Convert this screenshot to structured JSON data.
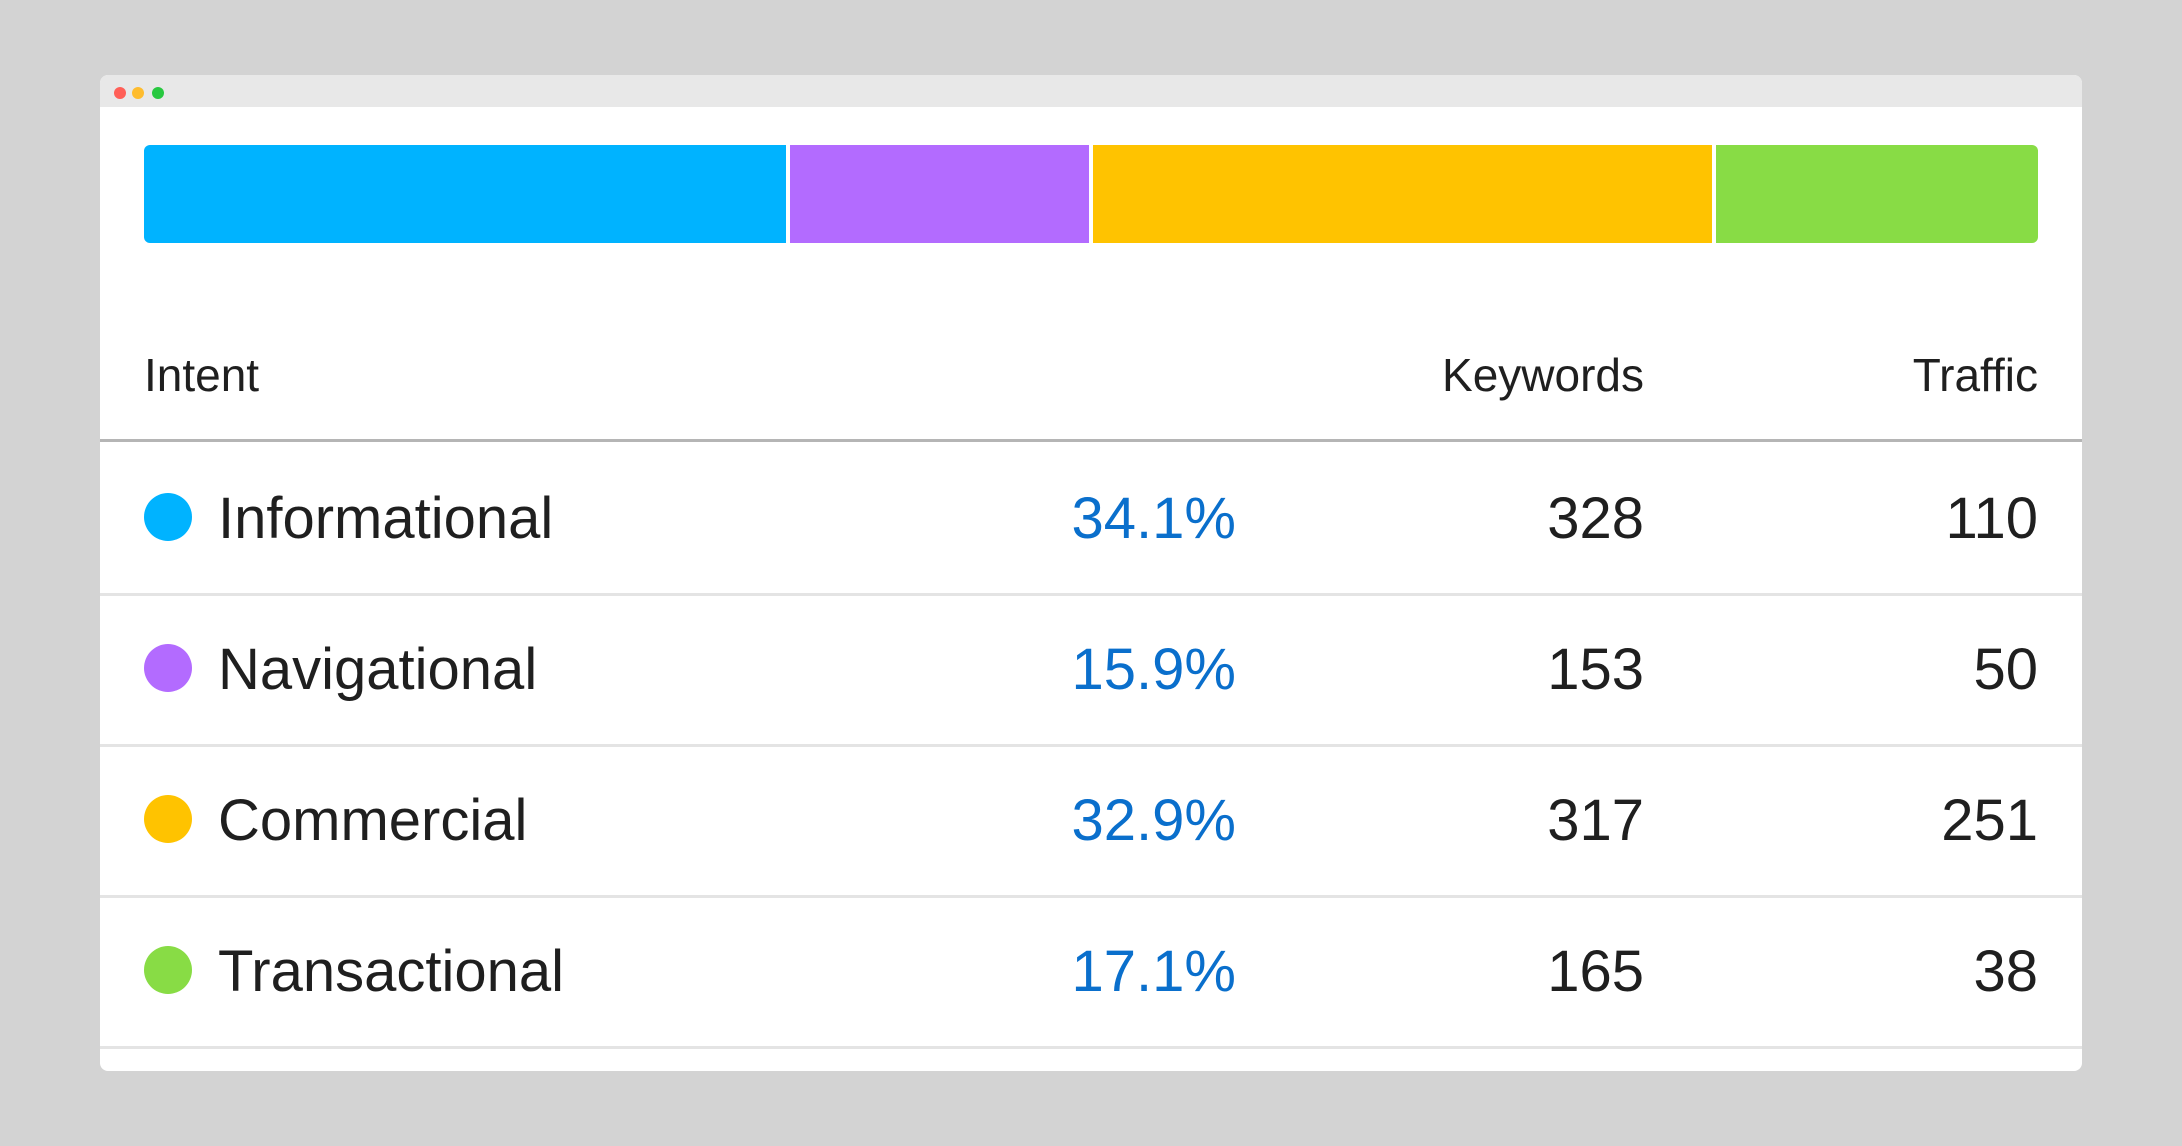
{
  "colors": {
    "informational": "#00b3ff",
    "navigational": "#b36bff",
    "commercial": "#ffc300",
    "transactional": "#88dc45"
  },
  "distribution": [
    {
      "key": "informational",
      "share": 34.1
    },
    {
      "key": "navigational",
      "share": 15.9
    },
    {
      "key": "commercial",
      "share": 32.9
    },
    {
      "key": "transactional",
      "share": 17.1
    }
  ],
  "table": {
    "headers": {
      "intent": "Intent",
      "keywords": "Keywords",
      "traffic": "Traffic"
    },
    "rows": [
      {
        "key": "informational",
        "label": "Informational",
        "percent": "34.1%",
        "keywords": "328",
        "traffic": "110"
      },
      {
        "key": "navigational",
        "label": "Navigational",
        "percent": "15.9%",
        "keywords": "153",
        "traffic": "50"
      },
      {
        "key": "commercial",
        "label": "Commercial",
        "percent": "32.9%",
        "keywords": "317",
        "traffic": "251"
      },
      {
        "key": "transactional",
        "label": "Transactional",
        "percent": "17.1%",
        "keywords": "165",
        "traffic": "38"
      }
    ]
  }
}
